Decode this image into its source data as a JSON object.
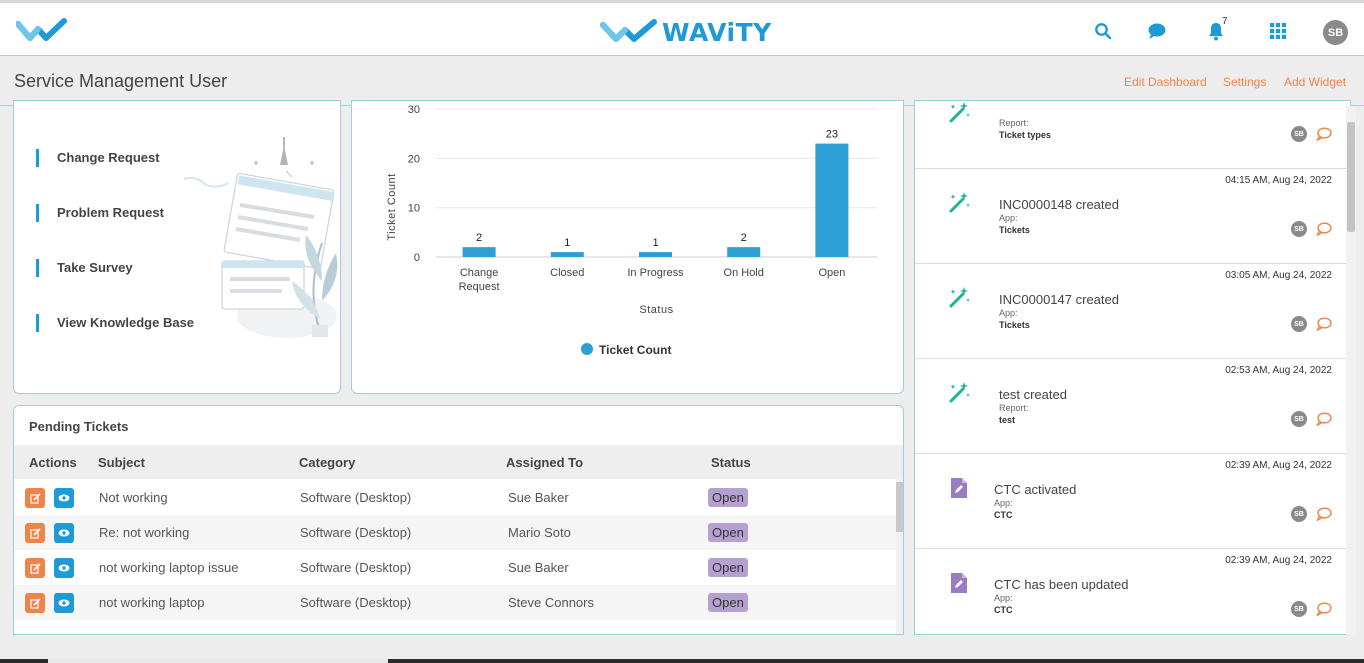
{
  "header": {
    "brand_name": "WAViTY",
    "icons": [
      "search-icon",
      "chat-icon",
      "bell-icon",
      "grid-icon"
    ],
    "notification_count": "7",
    "user_initials": "SB",
    "colors": {
      "accent": "#1e9ad6",
      "accent_light": "#6ec6ea",
      "link": "#f0834a"
    }
  },
  "subheader": {
    "title": "Service Management User",
    "links": {
      "edit_dashboard": "Edit Dashboard",
      "settings": "Settings",
      "add_widget": "Add Widget"
    }
  },
  "quick_links": {
    "items": [
      "Change Request",
      "Problem Request",
      "Take Survey",
      "View Knowledge Base"
    ]
  },
  "chart_data": {
    "type": "bar",
    "categories": [
      [
        "Change",
        "Request"
      ],
      [
        "Closed"
      ],
      [
        "In Progress"
      ],
      [
        "On Hold"
      ],
      [
        "Open"
      ]
    ],
    "series": [
      {
        "name": "Ticket Count",
        "values": [
          2,
          1,
          1,
          2,
          23
        ],
        "color": "#2e9fd4"
      }
    ],
    "xlabel": "Status",
    "ylabel": "Ticket Count",
    "yticks": [
      0,
      10,
      20,
      30
    ],
    "ylim": [
      0,
      30
    ],
    "grid": true,
    "legend": "bottom"
  },
  "pending_tickets": {
    "title": "Pending Tickets",
    "columns": {
      "actions": "Actions",
      "subject": "Subject",
      "category": "Category",
      "assigned_to": "Assigned To",
      "status": "Status"
    },
    "rows": [
      {
        "subject": "Not working",
        "category": "Software (Desktop)",
        "assigned_to": "Sue Baker",
        "status": "Open"
      },
      {
        "subject": "Re: not working",
        "category": "Software (Desktop)",
        "assigned_to": "Mario Soto",
        "status": "Open"
      },
      {
        "subject": "not working laptop issue",
        "category": "Software (Desktop)",
        "assigned_to": "Sue Baker",
        "status": "Open"
      },
      {
        "subject": "not working laptop",
        "category": "Software (Desktop)",
        "assigned_to": "Steve Connors",
        "status": "Open"
      }
    ]
  },
  "activity": {
    "items": [
      {
        "time": "",
        "title": "",
        "meta_label": "Report:",
        "meta_value": "Ticket types",
        "icon": "magic-wand-icon",
        "initials": "SB"
      },
      {
        "time": "04:15 AM, Aug 24, 2022",
        "title": "INC0000148 created",
        "meta_label": "App:",
        "meta_value": "Tickets",
        "icon": "magic-wand-icon",
        "initials": "SB"
      },
      {
        "time": "03:05 AM, Aug 24, 2022",
        "title": "INC0000147 created",
        "meta_label": "App:",
        "meta_value": "Tickets",
        "icon": "magic-wand-icon",
        "initials": "SB"
      },
      {
        "time": "02:53 AM, Aug 24, 2022",
        "title": "test created",
        "meta_label": "Report:",
        "meta_value": "test",
        "icon": "magic-wand-icon",
        "initials": "SB"
      },
      {
        "time": "02:39 AM, Aug 24, 2022",
        "title": "CTC activated",
        "meta_label": "App:",
        "meta_value": "CTC",
        "icon": "document-edit-icon",
        "initials": "SB"
      },
      {
        "time": "02:39 AM, Aug 24, 2022",
        "title": "CTC has been updated",
        "meta_label": "App:",
        "meta_value": "CTC",
        "icon": "document-edit-icon",
        "initials": "SB"
      }
    ]
  }
}
